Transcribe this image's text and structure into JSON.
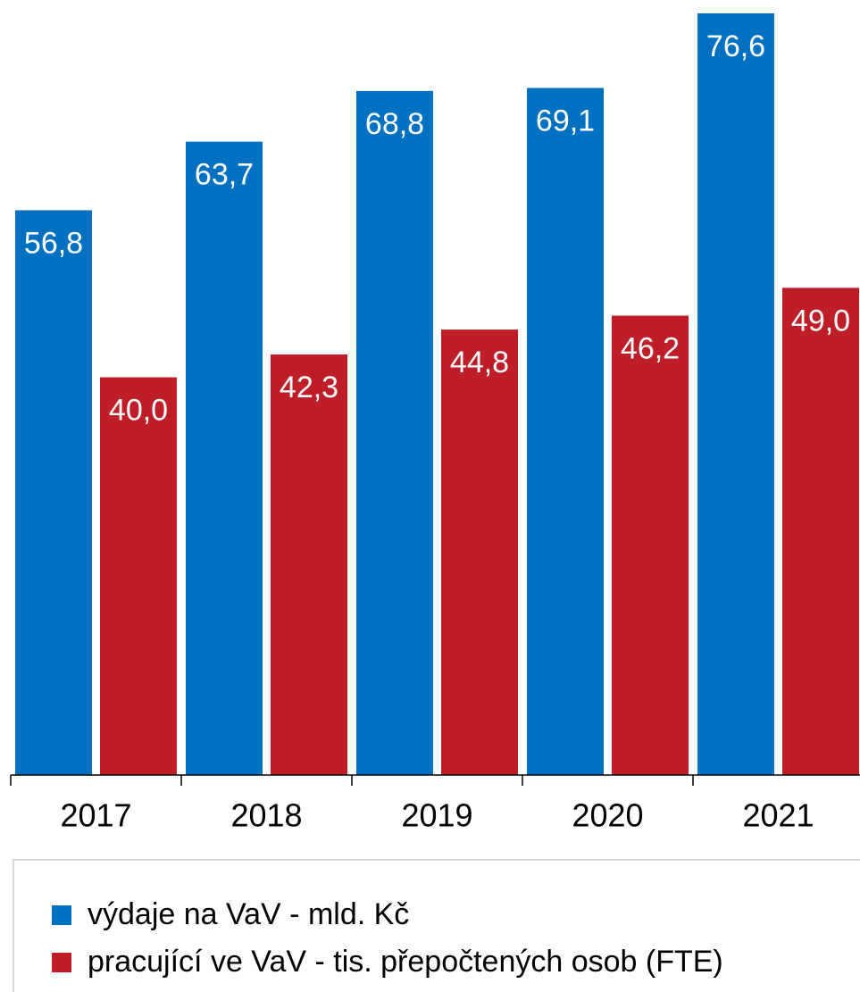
{
  "chart_data": {
    "type": "bar",
    "categories": [
      "2017",
      "2018",
      "2019",
      "2020",
      "2021"
    ],
    "series": [
      {
        "name": "výdaje na VaV - mld. Kč",
        "color": "#0070c0",
        "values": [
          56.8,
          63.7,
          68.8,
          69.1,
          76.6
        ],
        "value_labels": [
          "56,8",
          "63,7",
          "68,8",
          "69,1",
          "76,6"
        ]
      },
      {
        "name": "pracující ve VaV - tis. přepočtených osob (FTE)",
        "color": "#be1e28",
        "values": [
          40.0,
          42.3,
          44.8,
          46.2,
          49.0
        ],
        "value_labels": [
          "40,0",
          "42,3",
          "44,8",
          "46,2",
          "49,0"
        ]
      }
    ]
  }
}
